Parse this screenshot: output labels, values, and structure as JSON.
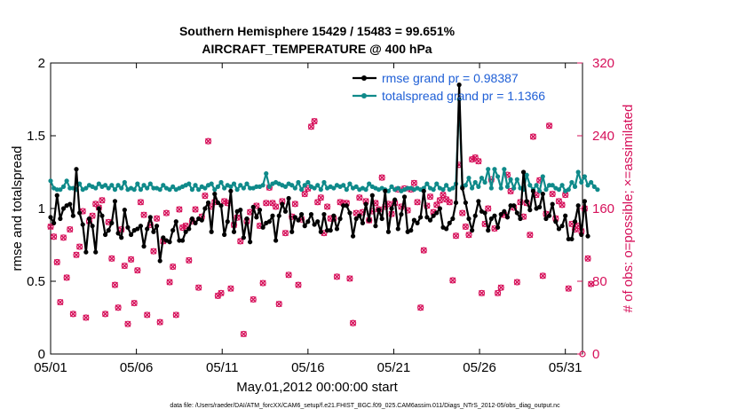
{
  "chart_data": {
    "type": "line",
    "title_line1": "Southern Hemisphere 15429 / 15483 = 99.651%",
    "title_line2": "AIRCRAFT_TEMPERATURE @ 400 hPa",
    "xlabel": "May.01,2012 00:00:00 start",
    "ylabel_left": "rmse and totalspread",
    "ylabel_right": "# of obs: o=possible; ×=assimilated",
    "footnote": "data file: /Users/raeder/DAI/ATM_forcXX/CAM6_setup/f.e21.FHIST_BGC.f09_025.CAM6assim.011/Diags_NTrS_2012-05/obs_diag_output.nc",
    "x_ticks": [
      {
        "x": 1,
        "label": "05/01"
      },
      {
        "x": 6,
        "label": "05/06"
      },
      {
        "x": 11,
        "label": "05/11"
      },
      {
        "x": 16,
        "label": "05/16"
      },
      {
        "x": 21,
        "label": "05/21"
      },
      {
        "x": 26,
        "label": "05/26"
      },
      {
        "x": 31,
        "label": "05/31"
      }
    ],
    "xlim": [
      1,
      32
    ],
    "ylim_left": [
      0,
      2
    ],
    "yticks_left": [
      "0",
      "0.5",
      "1",
      "1.5",
      "2"
    ],
    "ylim_right": [
      0,
      320
    ],
    "yticks_right": [
      "0",
      "80",
      "160",
      "240",
      "320"
    ],
    "colors": {
      "rmse": "#000000",
      "totalspread": "#0f8a8a",
      "obs": "#d6105a",
      "legend_text": "#1f5fd6"
    },
    "series": [
      {
        "name": "rmse",
        "legend": "rmse grand pr = 0.98387",
        "values": [
          0.94,
          0.9,
          1.09,
          0.93,
          1.0,
          1.02,
          1.03,
          0.95,
          1.27,
          0.97,
          0.89,
          0.7,
          0.93,
          0.88,
          0.7,
          1.0,
          0.95,
          0.82,
          0.85,
          0.9,
          1.05,
          0.83,
          0.8,
          0.99,
          0.87,
          0.82,
          0.85,
          0.86,
          0.88,
          0.74,
          0.86,
          0.94,
          0.84,
          0.88,
          0.64,
          0.8,
          0.78,
          0.77,
          0.85,
          0.91,
          0.78,
          0.78,
          0.84,
          0.86,
          0.93,
          0.9,
          0.93,
          0.92,
          1.0,
          1.04,
          0.84,
          1.1,
          1.04,
          1.02,
          0.82,
          0.91,
          1.12,
          0.84,
          0.98,
          0.99,
          0.8,
          0.93,
          0.77,
          1.01,
          0.94,
          0.99,
          0.87,
          0.9,
          0.91,
          0.95,
          0.78,
          0.95,
          1.03,
          0.98,
          1.07,
          0.84,
          0.94,
          0.92,
          0.96,
          0.88,
          0.91,
          0.96,
          0.89,
          0.91,
          0.84,
          0.96,
          0.85,
          0.85,
          0.95,
          0.86,
          0.93,
          1.02,
          1.02,
          0.97,
          0.81,
          0.93,
          0.95,
          0.9,
          1.03,
          0.92,
          1.09,
          0.88,
          0.99,
          0.93,
          1.12,
          0.84,
          1.0,
          1.06,
          0.86,
          0.96,
          1.08,
          0.84,
          0.85,
          0.92,
          0.9,
          0.94,
          1.12,
          0.94,
          0.92,
          0.95,
          0.97,
          1.0,
          0.87,
          0.86,
          0.9,
          0.93,
          1.04,
          1.85,
          1.14,
          1.04,
          0.93,
          0.85,
          0.95,
          1.05,
          0.98,
          0.97,
          0.85,
          0.93,
          0.95,
          0.87,
          0.96,
          0.98,
          0.94,
          1.02,
          1.02,
          0.97,
          0.93,
          1.25,
          1.05,
          0.99,
          1.12,
          1.0,
          1.01,
          1.1,
          0.93,
          0.95,
          1.03,
          0.91,
          0.86,
          0.88,
          0.95,
          0.79,
          0.79,
          0.91,
          1.02,
          0.82,
          1.05,
          0.81
        ],
        "t_start": 1.0,
        "t_step": 0.1875
      },
      {
        "name": "totalspread",
        "legend": "totalspread grand pr = 1.1366",
        "values": [
          1.19,
          1.14,
          1.13,
          1.13,
          1.15,
          1.19,
          1.14,
          1.14,
          1.13,
          1.17,
          1.13,
          1.14,
          1.16,
          1.15,
          1.14,
          1.17,
          1.15,
          1.16,
          1.14,
          1.16,
          1.13,
          1.16,
          1.14,
          1.18,
          1.13,
          1.14,
          1.13,
          1.17,
          1.13,
          1.16,
          1.14,
          1.17,
          1.14,
          1.14,
          1.13,
          1.16,
          1.14,
          1.13,
          1.15,
          1.13,
          1.14,
          1.15,
          1.16,
          1.17,
          1.13,
          1.16,
          1.13,
          1.15,
          1.14,
          1.16,
          1.17,
          1.13,
          1.15,
          1.18,
          1.14,
          1.16,
          1.15,
          1.17,
          1.13,
          1.16,
          1.14,
          1.17,
          1.14,
          1.14,
          1.15,
          1.15,
          1.16,
          1.24,
          1.15,
          1.17,
          1.18,
          1.17,
          1.16,
          1.15,
          1.17,
          1.16,
          1.14,
          1.18,
          1.13,
          1.16,
          1.18,
          1.15,
          1.14,
          1.16,
          1.13,
          1.18,
          1.14,
          1.15,
          1.14,
          1.16,
          1.15,
          1.16,
          1.13,
          1.17,
          1.14,
          1.15,
          1.13,
          1.14,
          1.13,
          1.17,
          1.15,
          1.14,
          1.13,
          1.14,
          1.13,
          1.12,
          1.15,
          1.13,
          1.14,
          1.12,
          1.13,
          1.14,
          1.14,
          1.13,
          1.14,
          1.13,
          1.14,
          1.17,
          1.14,
          1.13,
          1.17,
          1.14,
          1.13,
          1.16,
          1.13,
          1.14,
          1.17,
          1.75,
          1.15,
          1.16,
          1.21,
          1.14,
          1.18,
          1.15,
          1.21,
          1.18,
          1.27,
          1.14,
          1.27,
          1.22,
          1.14,
          1.27,
          1.15,
          1.2,
          1.14,
          1.2,
          1.14,
          1.13,
          1.23,
          1.16,
          1.13,
          1.16,
          1.12,
          1.22,
          1.13,
          1.16,
          1.16,
          1.14,
          1.13,
          1.16,
          1.12,
          1.13,
          1.18,
          1.15,
          1.25,
          1.18,
          1.22,
          1.16,
          1.18,
          1.15,
          1.13
        ],
        "t_start": 1.0,
        "t_step": 0.1875
      }
    ],
    "obs_counts": [
      140,
      129,
      101,
      57,
      128,
      84,
      137,
      44,
      109,
      118,
      157,
      40,
      146,
      152,
      165,
      161,
      169,
      44,
      145,
      105,
      76,
      51,
      137,
      97,
      33,
      104,
      56,
      92,
      167,
      153,
      43,
      142,
      113,
      149,
      35,
      124,
      155,
      79,
      96,
      43,
      159,
      139,
      141,
      103,
      146,
      159,
      73,
      151,
      174,
      234,
      162,
      167,
      64,
      67,
      168,
      166,
      72,
      142,
      150,
      124,
      22,
      146,
      156,
      60,
      163,
      141,
      78,
      166,
      183,
      166,
      162,
      55,
      168,
      133,
      87,
      151,
      165,
      76,
      148,
      176,
      182,
      250,
      256,
      167,
      172,
      133,
      162,
      149,
      149,
      85,
      167,
      166,
      166,
      83,
      34,
      155,
      172,
      156,
      168,
      147,
      157,
      166,
      159,
      194,
      162,
      165,
      154,
      166,
      181,
      162,
      182,
      158,
      181,
      188,
      167,
      51,
      114,
      163,
      173,
      156,
      164,
      169,
      175,
      170,
      167,
      81,
      130,
      208,
      155,
      140,
      131,
      214,
      216,
      212,
      67,
      143,
      160,
      192,
      138,
      67,
      73,
      153,
      197,
      179,
      161,
      79,
      167,
      151,
      166,
      131,
      239,
      175,
      191,
      86,
      154,
      251,
      176,
      149,
      168,
      164,
      175,
      72,
      143,
      137,
      141,
      135,
      160,
      105,
      77
    ],
    "obs_t_start": 1.0,
    "obs_t_step": 0.1875
  }
}
